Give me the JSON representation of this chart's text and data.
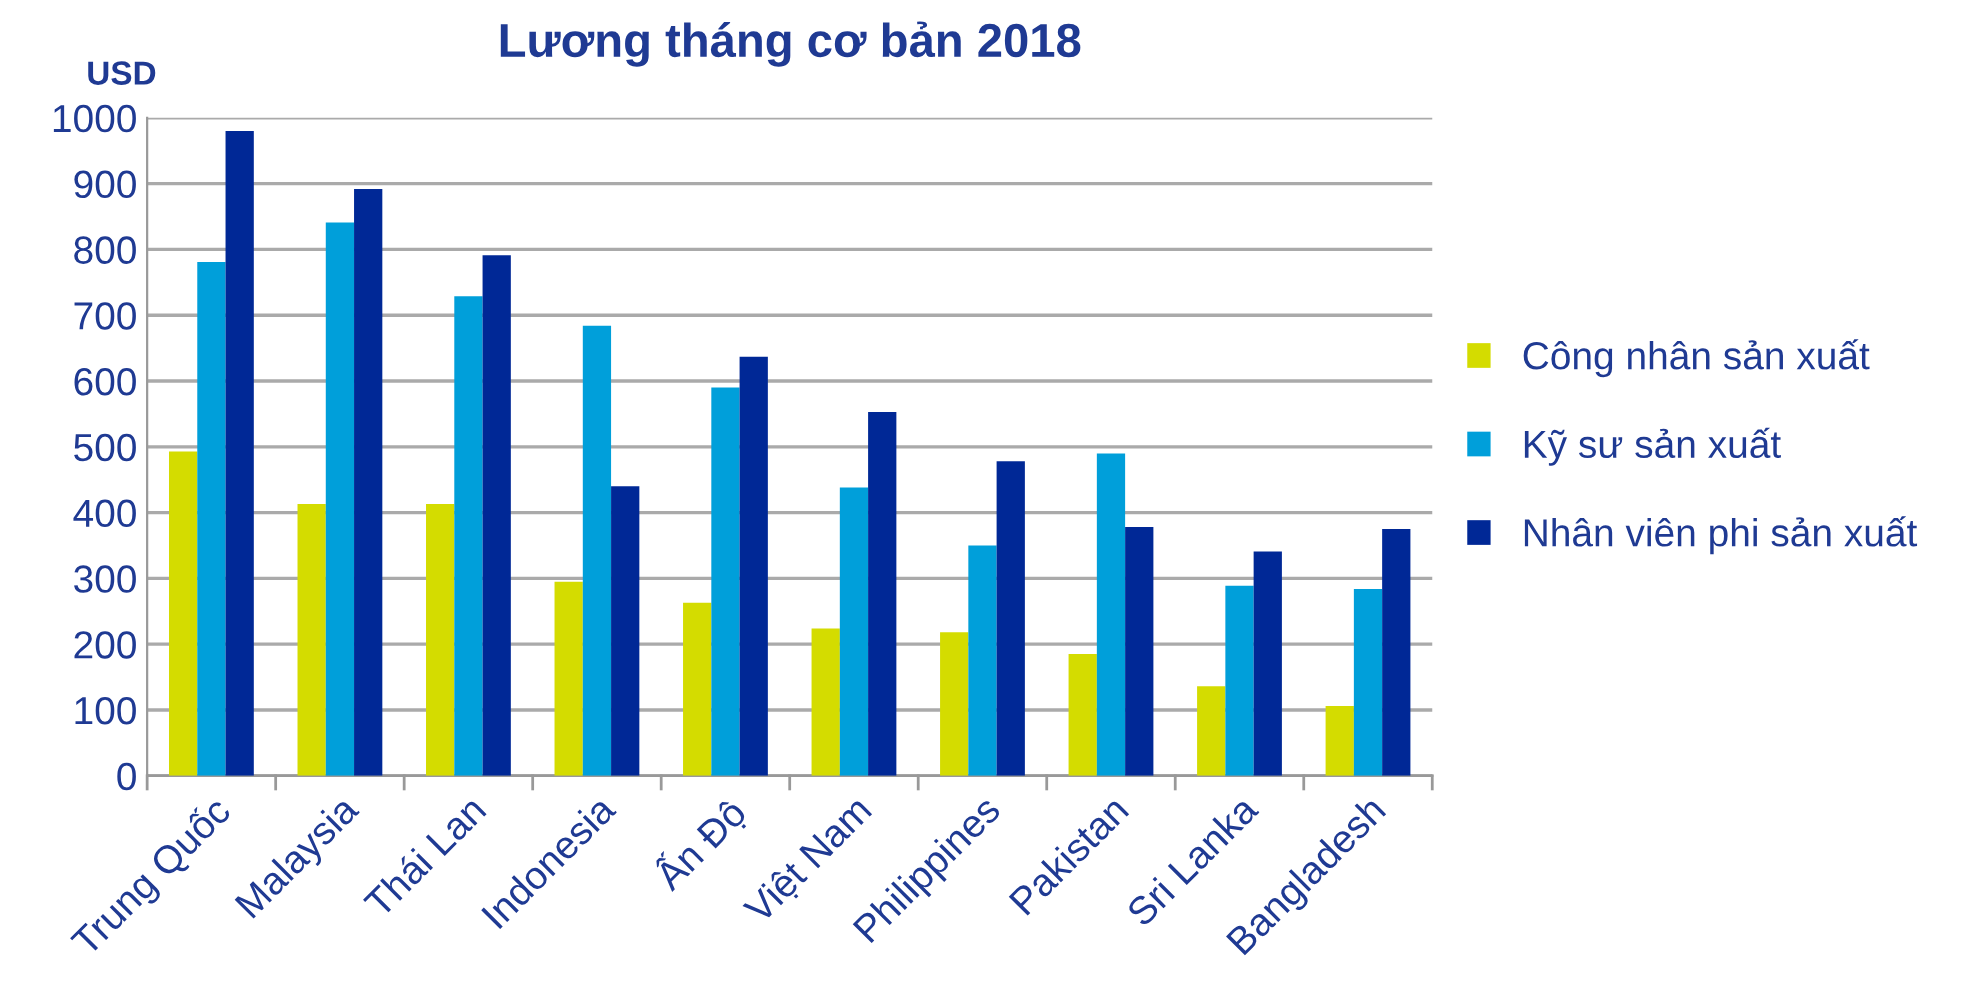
{
  "chart_data": {
    "type": "bar",
    "title": "Lương tháng cơ bản 2018",
    "ylabel": "USD",
    "categories": [
      "Trung Quốc",
      "Malaysia",
      "Thái Lan",
      "Indonesia",
      "Ấn Độ",
      "Việt Nam",
      "Philippines",
      "Pakistan",
      "Sri Lanka",
      "Bangladesh"
    ],
    "series": [
      {
        "name": "Công nhân sản xuất",
        "color": "#d4dc00",
        "values": [
          493,
          413,
          413,
          295,
          263,
          224,
          218,
          185,
          136,
          106
        ]
      },
      {
        "name": "Kỹ sư sản xuất",
        "color": "#009fda",
        "values": [
          781,
          841,
          729,
          684,
          590,
          438,
          350,
          490,
          289,
          284
        ]
      },
      {
        "name": "Nhân viên phi sản xuất",
        "color": "#002896",
        "values": [
          980,
          892,
          791,
          440,
          637,
          553,
          478,
          378,
          341,
          375
        ]
      }
    ],
    "ylim": [
      0,
      1000
    ],
    "yticks": [
      0,
      100,
      200,
      300,
      400,
      500,
      600,
      700,
      800,
      900,
      1000
    ],
    "grid": "y",
    "legend": "right"
  }
}
